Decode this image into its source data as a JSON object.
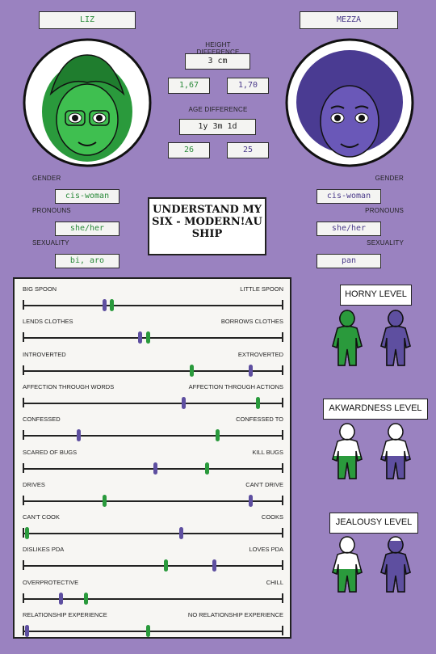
{
  "left": {
    "name": "LIZ",
    "height": "1,67",
    "age": "26",
    "gender": "cis-woman",
    "pronouns": "she/her",
    "sexuality": "bi, aro"
  },
  "right": {
    "name": "MEZZA",
    "height": "1,70",
    "age": "25",
    "gender": "cis-woman",
    "pronouns": "she/her",
    "sexuality": "pan"
  },
  "center": {
    "height_label": "HEIGHT DIFFERENCE",
    "height_diff": "3 cm",
    "age_label": "AGE DIFFERENCE",
    "age_diff": "1y 3m 1d"
  },
  "labels": {
    "gender": "GENDER",
    "pronouns": "PRONOUNS",
    "sexuality": "SEXUALITY"
  },
  "title": "UNDERSTAND MY SIX - MODERN!AU SHIP",
  "colors": {
    "liz": "#2a9a3c",
    "mezza": "#5e4fa0",
    "background": "#9a82c0"
  },
  "scales": [
    {
      "left": "BIG SPOON",
      "right": "LITTLE SPOON",
      "liz": 0.34,
      "mezza": 0.31
    },
    {
      "left": "LENDS CLOTHES",
      "right": "BORROWS CLOTHES",
      "liz": 0.48,
      "mezza": 0.45
    },
    {
      "left": "INTROVERTED",
      "right": "EXTROVERTED",
      "liz": 0.65,
      "mezza": 0.88
    },
    {
      "left": "AFFECTION THROUGH WORDS",
      "right": "AFFECTION THROUGH ACTIONS",
      "liz": 0.91,
      "mezza": 0.62
    },
    {
      "left": "CONFESSED",
      "right": "CONFESSED TO",
      "liz": 0.75,
      "mezza": 0.21
    },
    {
      "left": "SCARED OF BUGS",
      "right": "KILL BUGS",
      "liz": 0.71,
      "mezza": 0.51
    },
    {
      "left": "DRIVES",
      "right": "CAN'T DRIVE",
      "liz": 0.31,
      "mezza": 0.88
    },
    {
      "left": "CAN'T COOK",
      "right": "COOKS",
      "liz": 0.01,
      "mezza": 0.61
    },
    {
      "left": "DISLIKES PDA",
      "right": "LOVES PDA",
      "liz": 0.55,
      "mezza": 0.74
    },
    {
      "left": "OVERPROTECTIVE",
      "right": "CHILL",
      "liz": 0.24,
      "mezza": 0.14
    },
    {
      "left": "RELATIONSHIP EXPERIENCE",
      "right": "NO RELATIONSHIP EXPERIENCE",
      "liz": 0.48,
      "mezza": 0.01
    }
  ],
  "levels": [
    {
      "label": "HORNY LEVEL",
      "liz": 1.0,
      "mezza": 1.0
    },
    {
      "label": "AKWARDNESS LEVEL",
      "liz": 0.4,
      "mezza": 0.4
    },
    {
      "label": "JEALOUSY LEVEL",
      "liz": 0.4,
      "mezza": 0.9
    }
  ]
}
